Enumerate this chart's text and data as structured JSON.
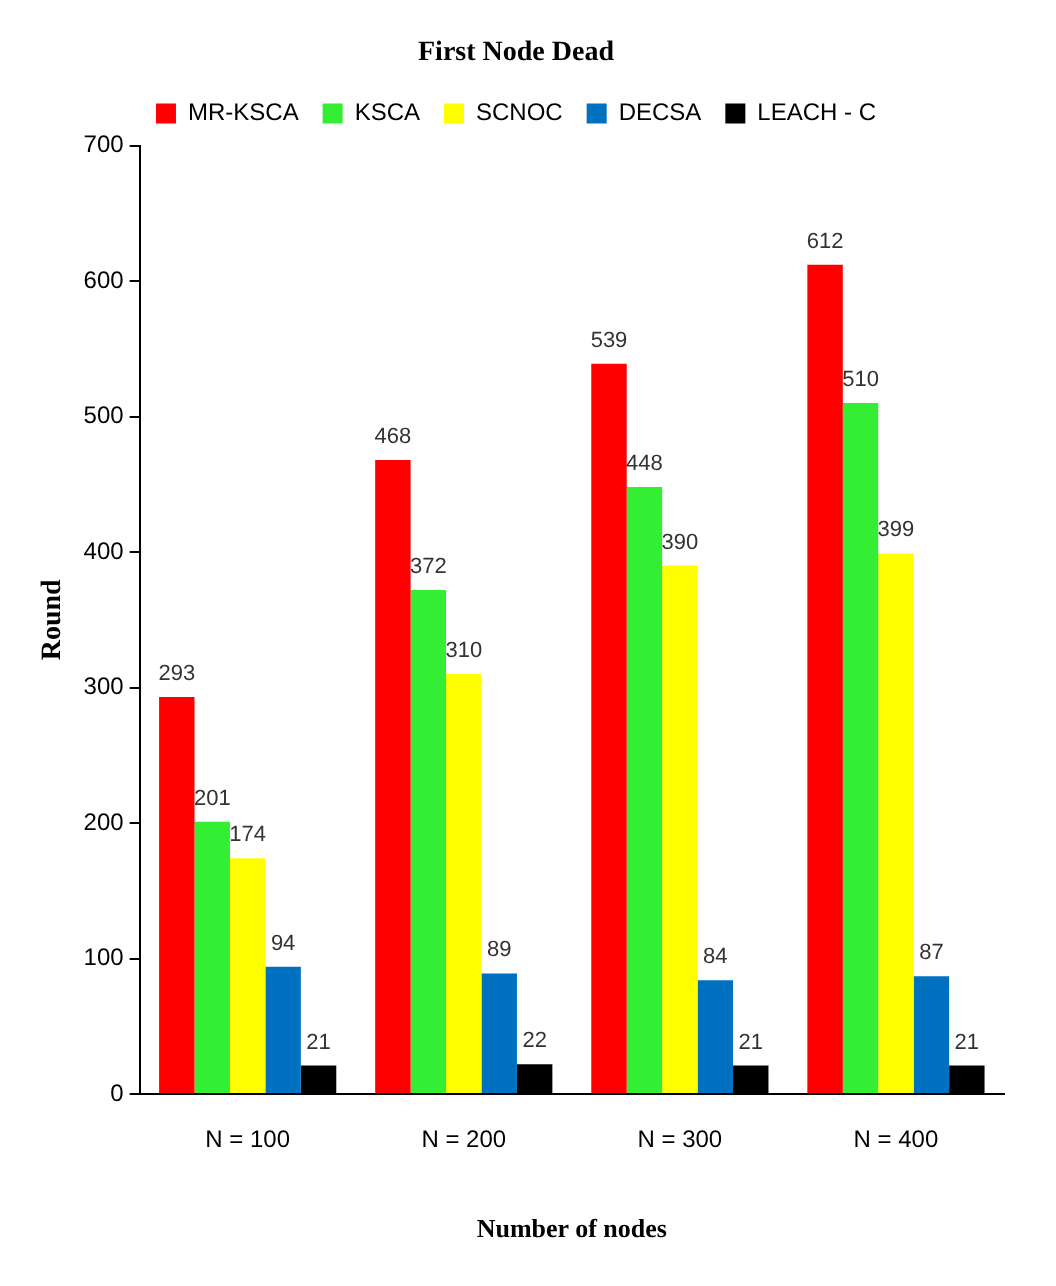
{
  "chart_data": {
    "type": "bar",
    "title": "First Node Dead",
    "xlabel": "Number of nodes",
    "ylabel": "Round",
    "categories": [
      "N = 100",
      "N = 200",
      "N = 300",
      "N = 400"
    ],
    "series": [
      {
        "name": "MR-KSCA",
        "color": "#ff0000",
        "values": [
          293,
          468,
          539,
          612
        ]
      },
      {
        "name": "KSCA",
        "color": "#33ee33",
        "values": [
          201,
          372,
          448,
          510
        ]
      },
      {
        "name": "SCNOC",
        "color": "#ffff00",
        "values": [
          174,
          310,
          390,
          399
        ]
      },
      {
        "name": "DECSA",
        "color": "#0070c0",
        "values": [
          94,
          89,
          84,
          87
        ]
      },
      {
        "name": "LEACH - C",
        "color": "#000000",
        "values": [
          21,
          22,
          21,
          21
        ]
      }
    ],
    "ylim": [
      0,
      700
    ],
    "yticks": [
      0,
      100,
      200,
      300,
      400,
      500,
      600,
      700
    ],
    "grid": false,
    "legend": "top",
    "data_labels": true
  }
}
